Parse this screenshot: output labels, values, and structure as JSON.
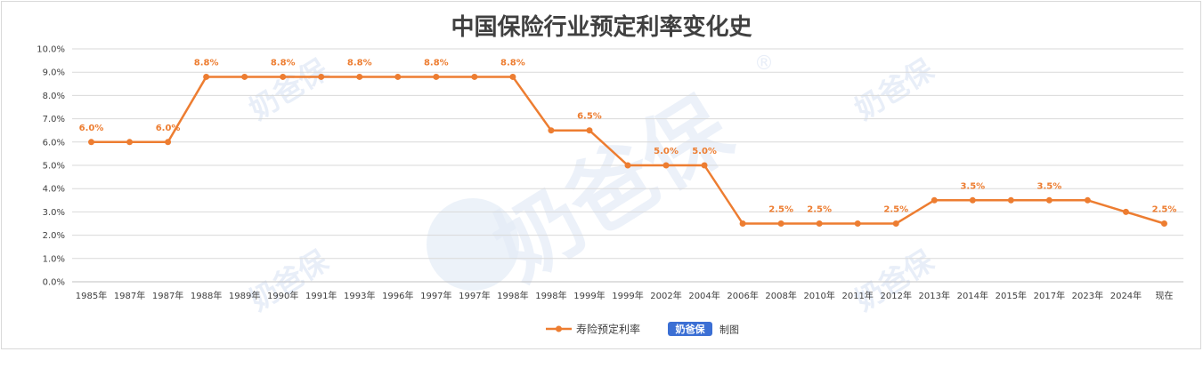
{
  "chart_data": {
    "type": "line",
    "title": "中国保险行业预定利率变化史",
    "categories": [
      "1985年",
      "1987年",
      "1987年",
      "1988年",
      "1989年",
      "1990年",
      "1991年",
      "1993年",
      "1996年",
      "1997年",
      "1997年",
      "1998年",
      "1998年",
      "1999年",
      "1999年",
      "2002年",
      "2004年",
      "2006年",
      "2008年",
      "2010年",
      "2011年",
      "2012年",
      "2013年",
      "2014年",
      "2015年",
      "2017年",
      "2023年",
      "2024年",
      "现在"
    ],
    "series": [
      {
        "name": "寿险预定利率",
        "values": [
          6.0,
          6.0,
          6.0,
          8.8,
          8.8,
          8.8,
          8.8,
          8.8,
          8.8,
          8.8,
          8.8,
          8.8,
          6.5,
          6.5,
          5.0,
          5.0,
          5.0,
          2.5,
          2.5,
          2.5,
          2.5,
          2.5,
          3.5,
          3.5,
          3.5,
          3.5,
          3.5,
          3.0,
          2.5
        ],
        "color": "#ed7d31"
      }
    ],
    "data_labels": [
      {
        "index": 0,
        "text": "6.0%"
      },
      {
        "index": 2,
        "text": "6.0%"
      },
      {
        "index": 3,
        "text": "8.8%"
      },
      {
        "index": 5,
        "text": "8.8%"
      },
      {
        "index": 7,
        "text": "8.8%"
      },
      {
        "index": 9,
        "text": "8.8%"
      },
      {
        "index": 11,
        "text": "8.8%"
      },
      {
        "index": 13,
        "text": "6.5%"
      },
      {
        "index": 15,
        "text": "5.0%"
      },
      {
        "index": 16,
        "text": "5.0%"
      },
      {
        "index": 18,
        "text": "2.5%"
      },
      {
        "index": 19,
        "text": "2.5%"
      },
      {
        "index": 21,
        "text": "2.5%"
      },
      {
        "index": 23,
        "text": "3.5%"
      },
      {
        "index": 25,
        "text": "3.5%"
      },
      {
        "index": 28,
        "text": "2.5%"
      }
    ],
    "yticks": [
      "0.0%",
      "1.0%",
      "2.0%",
      "3.0%",
      "4.0%",
      "5.0%",
      "6.0%",
      "7.0%",
      "8.0%",
      "9.0%",
      "10.0%"
    ],
    "ylim": [
      0,
      10
    ],
    "grid": true,
    "legend_position": "bottom"
  },
  "watermark": {
    "brand": "奶爸保",
    "registered": "®",
    "legend_brand": "奶爸保",
    "legend_suffix": "制图"
  }
}
